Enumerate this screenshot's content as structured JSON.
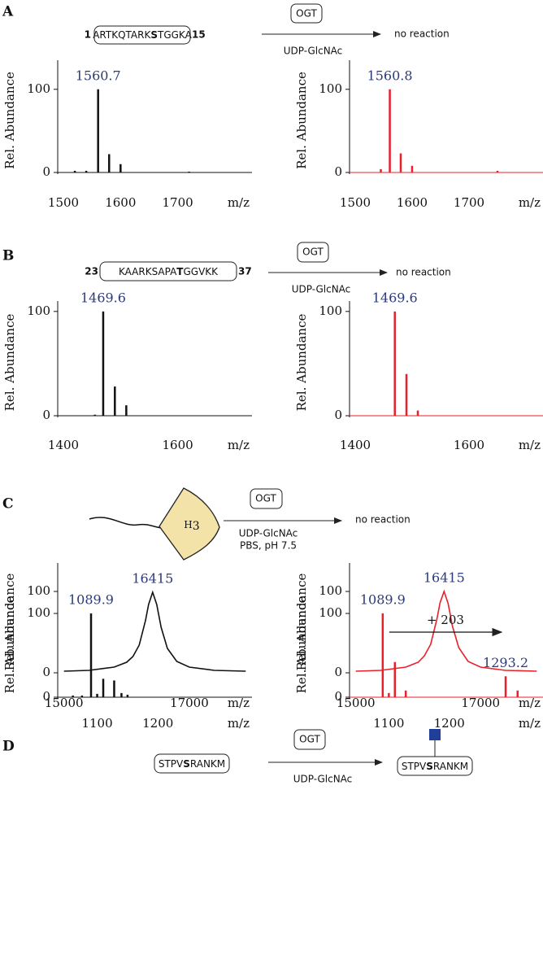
{
  "panels": [
    {
      "label": "A",
      "scheme": {
        "start": "1",
        "peptide": [
          "ARTKQTARK",
          "S",
          "TGGKA"
        ],
        "end": "15",
        "enzyme": "OGT",
        "reagents": [
          "UDP-GlcNAc"
        ],
        "result": "no reaction"
      }
    },
    {
      "label": "B",
      "scheme": {
        "start": "23",
        "peptide": [
          "KAARKSAPA",
          "T",
          "GGVKK"
        ],
        "end": "37",
        "enzyme": "OGT",
        "reagents": [
          "UDP-GlcNAc"
        ],
        "result": "no reaction"
      }
    },
    {
      "label": "C",
      "scheme": {
        "substrate": [
          "H",
          "3"
        ],
        "enzyme": "OGT",
        "reagents": [
          "UDP-GlcNAc",
          "PBS, pH 7.5"
        ],
        "result": "no reaction"
      }
    },
    {
      "label": "D",
      "scheme": {
        "peptide": [
          "STPV",
          "S",
          "RANKM"
        ],
        "enzyme": "OGT",
        "reagents": [
          "UDP-GlcNAc"
        ],
        "product": [
          "STPV",
          "S",
          "RANKM"
        ]
      }
    }
  ],
  "chart_data": [
    {
      "type": "stick",
      "color": "#111111",
      "x": [
        1520,
        1540,
        1560.7,
        1580,
        1600,
        1720
      ],
      "values": [
        2,
        2,
        100,
        22,
        10,
        1
      ],
      "xlim": [
        1490,
        1830
      ],
      "xticks": [
        1500,
        1600,
        1700
      ],
      "ylim": [
        0,
        135
      ],
      "yticks": [
        0,
        100
      ],
      "xlabel": "m/z",
      "ylabel": "Rel. Abundance",
      "annotations": [
        {
          "x": 1560.7,
          "label": "1560.7"
        }
      ]
    },
    {
      "type": "stick",
      "color": "#e8202a",
      "x": [
        1545,
        1560.8,
        1580,
        1600,
        1750
      ],
      "values": [
        4,
        100,
        23,
        8,
        2
      ],
      "xlim": [
        1490,
        1830
      ],
      "xticks": [
        1500,
        1600,
        1700
      ],
      "ylim": [
        0,
        135
      ],
      "yticks": [
        0,
        100
      ],
      "xlabel": "m/z",
      "ylabel": "Rel. Abundance",
      "annotations": [
        {
          "x": 1560.8,
          "label": "1560.8"
        }
      ]
    },
    {
      "type": "stick",
      "color": "#111111",
      "x": [
        1455,
        1469.6,
        1490,
        1510
      ],
      "values": [
        1,
        100,
        28,
        10
      ],
      "xlim": [
        1390,
        1730
      ],
      "xticks": [
        1400,
        1600
      ],
      "ylim": [
        0,
        110
      ],
      "yticks": [
        0,
        100
      ],
      "xlabel": "m/z",
      "ylabel": "Rel. Abundance",
      "annotations": [
        {
          "x": 1469.6,
          "label": "1469.6"
        }
      ]
    },
    {
      "type": "stick",
      "color": "#e8202a",
      "x": [
        1469.6,
        1490,
        1510
      ],
      "values": [
        100,
        40,
        5
      ],
      "xlim": [
        1390,
        1730
      ],
      "xticks": [
        1400,
        1600
      ],
      "ylim": [
        0,
        110
      ],
      "yticks": [
        0,
        100
      ],
      "xlabel": "m/z",
      "ylabel": "Rel. Abundance",
      "annotations": [
        {
          "x": 1469.6,
          "label": "1469.6"
        }
      ]
    },
    {
      "type": "line",
      "color": "#111111",
      "x": [
        15000,
        15400,
        15800,
        16000,
        16100,
        16200,
        16300,
        16350,
        16415,
        16480,
        16550,
        16650,
        16800,
        17000,
        17400,
        17900
      ],
      "values": [
        2,
        3,
        7,
        13,
        20,
        34,
        64,
        84,
        99,
        84,
        56,
        30,
        14,
        7,
        3,
        2
      ],
      "xlim": [
        14900,
        18000
      ],
      "xticks": [
        15000,
        17000
      ],
      "ylim": [
        0,
        135
      ],
      "yticks": [
        0,
        100
      ],
      "xlabel": "m/z",
      "ylabel": "Rel. Abundance",
      "annotations": [
        {
          "x": 16415,
          "label": "16415"
        }
      ]
    },
    {
      "type": "line",
      "color": "#e8202a",
      "x": [
        15000,
        15400,
        15800,
        16000,
        16100,
        16200,
        16300,
        16350,
        16415,
        16480,
        16550,
        16650,
        16800,
        17000,
        17400,
        17900
      ],
      "values": [
        2,
        3,
        7,
        13,
        21,
        35,
        66,
        86,
        100,
        85,
        57,
        31,
        14,
        7,
        3,
        2
      ],
      "xlim": [
        14900,
        18000
      ],
      "xticks": [
        15000,
        17000
      ],
      "ylim": [
        0,
        135
      ],
      "yticks": [
        0,
        100
      ],
      "xlabel": "m/z",
      "ylabel": "Rel. Abundance",
      "annotations": [
        {
          "x": 16415,
          "label": "16415"
        }
      ]
    },
    {
      "type": "stick",
      "color": "#111111",
      "x": [
        1060,
        1075,
        1089.9,
        1100,
        1110,
        1128,
        1140,
        1150
      ],
      "values": [
        2,
        2,
        100,
        4,
        22,
        20,
        5,
        3
      ],
      "xlim": [
        1035,
        1355
      ],
      "xticks": [
        1100,
        1200
      ],
      "ylim": [
        0,
        135
      ],
      "yticks": [
        0,
        100
      ],
      "xlabel": "m/z",
      "ylabel": "Rel. Abundance",
      "annotations": [
        {
          "x": 1089.9,
          "label": "1089.9"
        }
      ]
    },
    {
      "type": "stick",
      "color": "#e8202a",
      "x": [
        1089.9,
        1100,
        1110,
        1128,
        1293.2,
        1313
      ],
      "values": [
        100,
        5,
        42,
        8,
        25,
        8
      ],
      "xlim": [
        1035,
        1355
      ],
      "xticks": [
        1100,
        1200
      ],
      "ylim": [
        0,
        135
      ],
      "yticks": [
        0,
        100
      ],
      "xlabel": "m/z",
      "ylabel": "Rel. Abundance",
      "annotations": [
        {
          "x": 1089.9,
          "label": "1089.9"
        },
        {
          "x": 1293.2,
          "label": "1293.2"
        }
      ],
      "shift_label": "+ 203"
    }
  ]
}
